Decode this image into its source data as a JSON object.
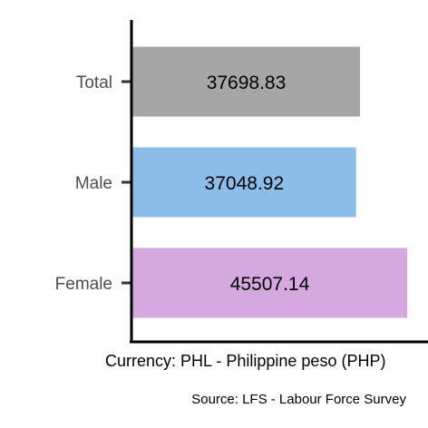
{
  "chart_data": {
    "type": "bar",
    "orientation": "horizontal",
    "categories": [
      "Total",
      "Male",
      "Female"
    ],
    "values": [
      37698.83,
      37048.92,
      45507.14
    ],
    "value_labels": [
      "37698.83",
      "37048.92",
      "45507.14"
    ],
    "colors": [
      "#a6a6a6",
      "#8bbde8",
      "#d5a8e0"
    ],
    "xlabel": "Currency: PHL - Philippine peso (PHP)",
    "ylabel": "",
    "xlim": [
      0,
      45507.14
    ],
    "grid": false,
    "legend": "none"
  },
  "caption": "Source:  LFS - Labour Force Survey"
}
